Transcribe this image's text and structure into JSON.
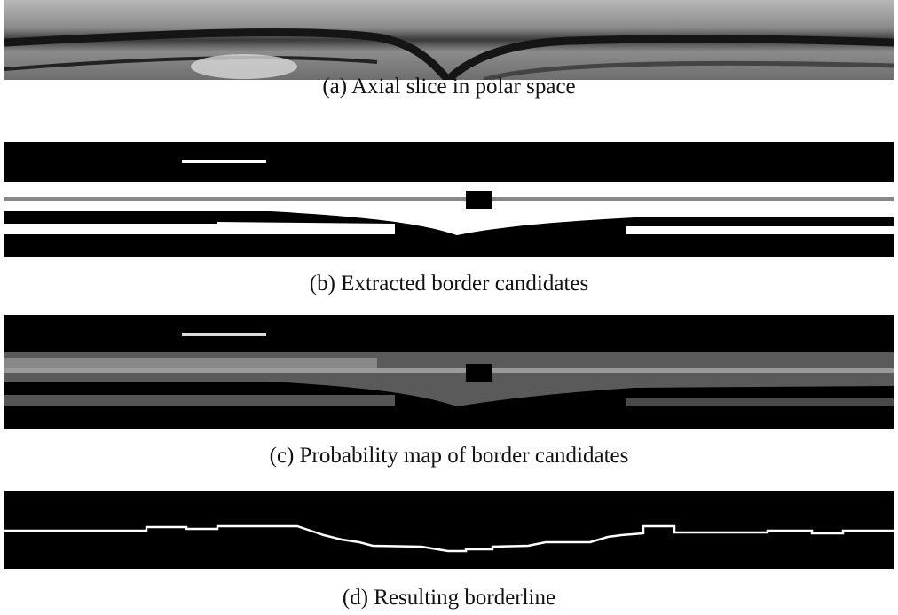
{
  "captions": [
    "(a) Axial slice in polar space",
    "(b) Extracted border candidates",
    "(c) Probability map of border candidates",
    "(d) Resulting borderline"
  ]
}
